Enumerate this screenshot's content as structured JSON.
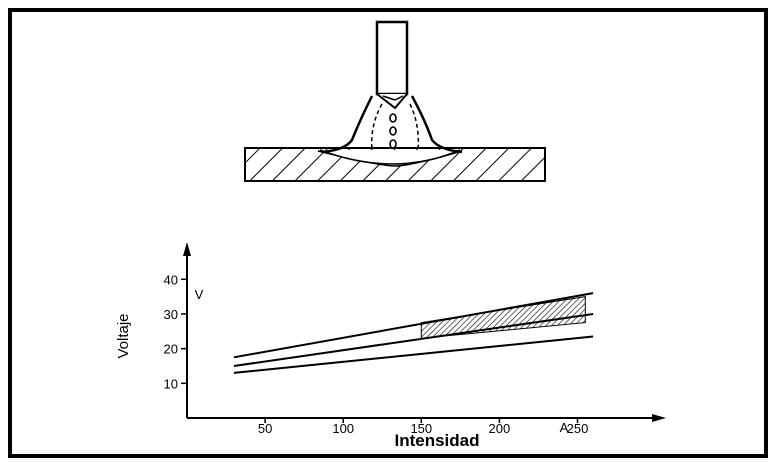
{
  "chart_data": {
    "type": "line",
    "xlabel": "Intensidad",
    "ylabel": "Voltaje",
    "x_unit": "A",
    "y_unit": "V",
    "x_ticks": [
      50,
      100,
      150,
      200,
      250
    ],
    "y_ticks": [
      10,
      20,
      30,
      40
    ],
    "xlim": [
      0,
      290
    ],
    "ylim": [
      0,
      47
    ],
    "series": [
      {
        "x": [
          30,
          260
        ],
        "y": [
          17.5,
          36
        ]
      },
      {
        "x": [
          30,
          260
        ],
        "y": [
          15,
          30
        ]
      },
      {
        "x": [
          30,
          260
        ],
        "y": [
          13,
          23.5
        ]
      }
    ],
    "shaded_region": {
      "x_range": [
        150,
        255
      ],
      "upper": [
        27.5,
        35
      ],
      "lower": [
        23,
        27.5
      ],
      "pattern": "hatched"
    }
  }
}
